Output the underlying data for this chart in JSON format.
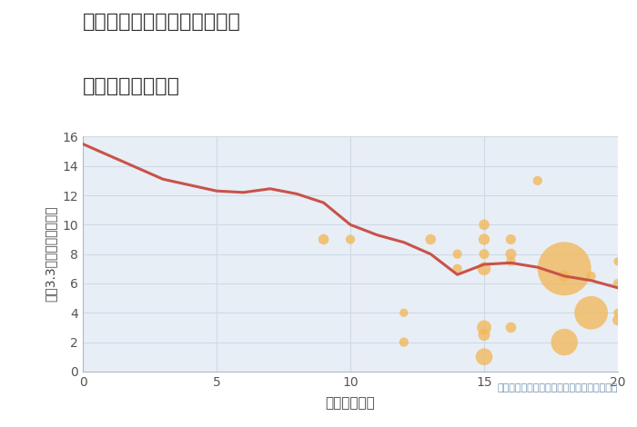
{
  "title_line1": "埼玉県児玉郡上里町金久保の",
  "title_line2": "駅距離別土地価格",
  "xlabel": "駅距離（分）",
  "ylabel": "坪（3.3㎡）単価（万円）",
  "fig_bg_color": "#ffffff",
  "plot_bg_color": "#e8eef5",
  "line_color": "#c9524a",
  "line_x": [
    0,
    1,
    2,
    3,
    4,
    5,
    6,
    7,
    8,
    9,
    10,
    11,
    12,
    13,
    14,
    15,
    16,
    17,
    18,
    19,
    20
  ],
  "line_y": [
    15.5,
    14.7,
    13.9,
    13.1,
    12.7,
    12.3,
    12.2,
    12.45,
    12.1,
    11.5,
    10.0,
    9.3,
    8.8,
    8.0,
    6.6,
    7.3,
    7.4,
    7.1,
    6.5,
    6.2,
    5.7
  ],
  "scatter_x": [
    9,
    10,
    12,
    12,
    13,
    14,
    14,
    15,
    15,
    15,
    15,
    15,
    15,
    15,
    16,
    16,
    16,
    16,
    17,
    18,
    18,
    18,
    19,
    19,
    20,
    20,
    20,
    20
  ],
  "scatter_y": [
    9.0,
    9.0,
    4.0,
    2.0,
    9.0,
    8.0,
    7.0,
    10.0,
    9.0,
    8.0,
    7.0,
    3.0,
    2.5,
    1.0,
    9.0,
    8.0,
    7.5,
    3.0,
    13.0,
    7.0,
    6.5,
    2.0,
    6.5,
    4.0,
    7.5,
    4.0,
    3.5,
    6.0
  ],
  "scatter_sizes": [
    70,
    55,
    45,
    55,
    70,
    55,
    55,
    70,
    80,
    65,
    110,
    130,
    90,
    180,
    65,
    75,
    55,
    70,
    55,
    1800,
    75,
    450,
    55,
    700,
    45,
    45,
    75,
    55
  ],
  "scatter_color": "#f2b85a",
  "scatter_alpha": 0.78,
  "grid_color": "#ccd8e5",
  "ylim": [
    0,
    16
  ],
  "xlim": [
    0,
    20
  ],
  "annotation": "円の大きさは、取引のあった物件面積を示す",
  "annotation_color": "#7090b0"
}
